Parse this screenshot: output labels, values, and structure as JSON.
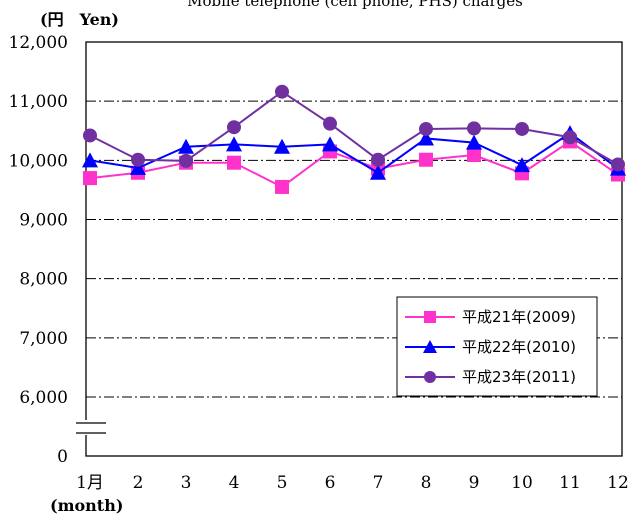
{
  "chart_data": {
    "type": "line",
    "title": "Mobile telephone (cell phone, PHS) charges",
    "ylabel": "(円　Yen)",
    "xlabel": "(month)",
    "x_tick_labels": [
      "1月",
      "2",
      "3",
      "4",
      "5",
      "6",
      "7",
      "8",
      "9",
      "10",
      "11",
      "12"
    ],
    "y_ticks": [
      {
        "value": 0,
        "label": "0"
      },
      {
        "value": 6000,
        "label": "6,000"
      },
      {
        "value": 7000,
        "label": "7,000"
      },
      {
        "value": 8000,
        "label": "8,000"
      },
      {
        "value": 9000,
        "label": "9,000"
      },
      {
        "value": 10000,
        "label": "10,000"
      },
      {
        "value": 11000,
        "label": "11,000"
      },
      {
        "value": 12000,
        "label": "12,000"
      }
    ],
    "ylim": [
      0,
      12000
    ],
    "axis_break": "between 0 and 6,000",
    "grid": true,
    "legend_position": "bottom-right",
    "series": [
      {
        "name": "平成21年(2009)",
        "color": "#ff33cc",
        "marker": "square",
        "values": [
          9700,
          9790,
          9960,
          9960,
          9550,
          10150,
          9860,
          10010,
          10090,
          9780,
          10320,
          9760
        ]
      },
      {
        "name": "平成22年(2010)",
        "color": "#0000ff",
        "marker": "triangle",
        "values": [
          10000,
          9870,
          10230,
          10270,
          10230,
          10270,
          9790,
          10370,
          10300,
          9920,
          10460,
          9860
        ]
      },
      {
        "name": "平成23年(2011)",
        "color": "#7030a0",
        "marker": "circle",
        "values": [
          10420,
          10010,
          9990,
          10560,
          11160,
          10620,
          10010,
          10530,
          10540,
          10530,
          10390,
          9930
        ]
      }
    ]
  }
}
